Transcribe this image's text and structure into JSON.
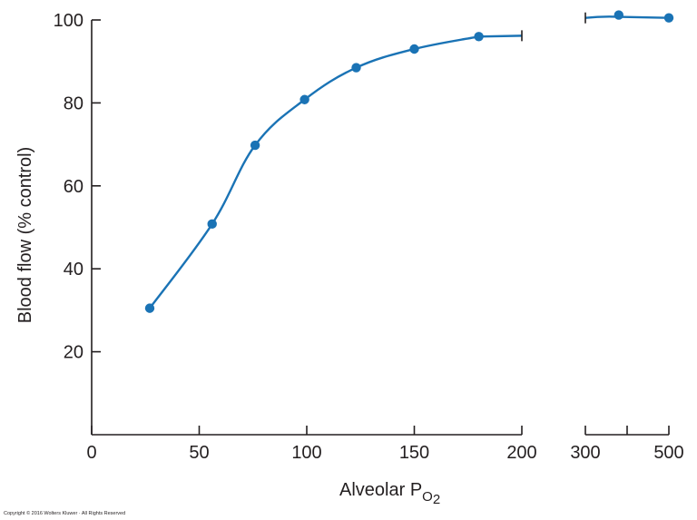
{
  "chart_data": {
    "type": "line",
    "ylabel": "Blood flow (% control)",
    "xlabel": {
      "main": "Alveolar P",
      "sub": "O",
      "subsub": "2"
    },
    "ylim": [
      0,
      100
    ],
    "yticks": [
      20,
      40,
      60,
      80,
      100
    ],
    "y_tick_labels": [
      "20",
      "40",
      "60",
      "80",
      "100"
    ],
    "x_segments": [
      {
        "range": [
          0,
          200
        ],
        "ticks": [
          0,
          50,
          100,
          150,
          200
        ],
        "tick_labels": [
          "0",
          "50",
          "100",
          "150",
          "200"
        ]
      },
      {
        "range": [
          300,
          500
        ],
        "ticks": [
          300,
          400,
          500
        ],
        "tick_labels": [
          "300",
          "",
          "500"
        ]
      }
    ],
    "series": [
      {
        "color": "#1a73b5",
        "segment1": {
          "x": [
            27,
            56,
            76,
            99,
            123,
            150,
            180
          ],
          "y": [
            30.5,
            50.8,
            69.8,
            80.8,
            88.5,
            93.0,
            96.0
          ]
        },
        "segment1_line_end": {
          "x": 200,
          "y": 96.2
        },
        "segment2": {
          "x": [
            380,
            500
          ],
          "y": [
            101.2,
            100.5
          ]
        },
        "segment2_line_start": {
          "x": 300,
          "y": 100.5
        }
      }
    ],
    "grid": false,
    "legend": "none"
  },
  "footer": {
    "copyright": "Copyright © 2016 Wolters Kluwer · All Rights Reserved"
  }
}
